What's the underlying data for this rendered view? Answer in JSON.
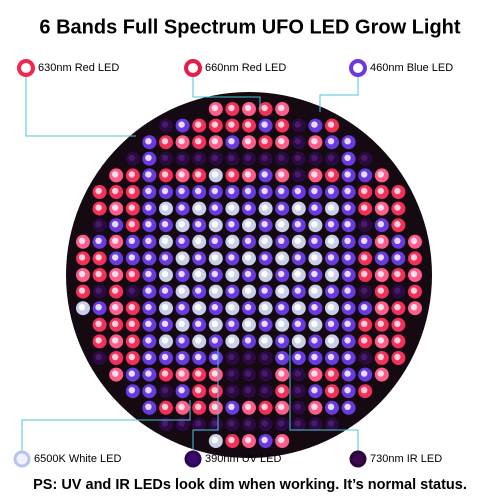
{
  "title": "6 Bands Full Spectrum UFO LED Grow Light",
  "top_labels": [
    "630nm Red LED",
    "660nm Red LED",
    "460nm Blue LED"
  ],
  "bottom_labels": [
    "6500K White LED",
    "390nm UV LED",
    "730nm IR LED"
  ],
  "note": "PS: UV and IR LEDs look dim when working. It’s normal status."
}
